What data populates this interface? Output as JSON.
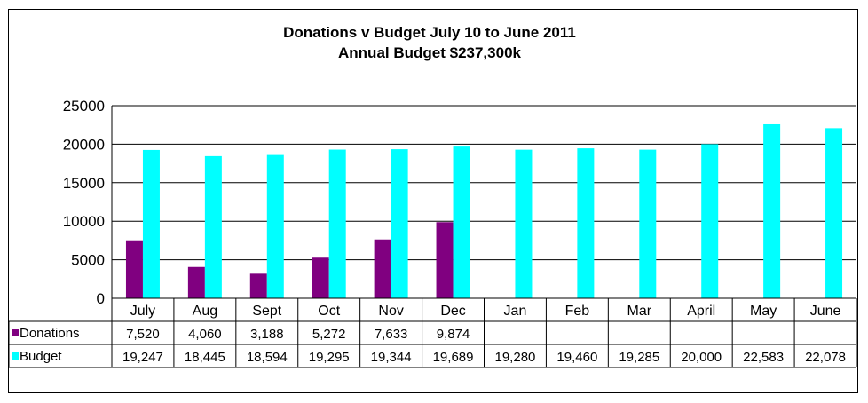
{
  "chart_data": {
    "type": "bar",
    "title": "Donations v Budget July 10 to June 2011",
    "subtitle": "Annual Budget $237,300k",
    "categories": [
      "July",
      "Aug",
      "Sept",
      "Oct",
      "Nov",
      "Dec",
      "Jan",
      "Feb",
      "Mar",
      "April",
      "May",
      "June"
    ],
    "series": [
      {
        "name": "Donations",
        "color": "#800080",
        "values": [
          7520,
          4060,
          3188,
          5272,
          7633,
          9874,
          null,
          null,
          null,
          null,
          null,
          null
        ],
        "labels": [
          "7,520",
          "4,060",
          "3,188",
          "5,272",
          "7,633",
          "9,874",
          "",
          "",
          "",
          "",
          "",
          ""
        ]
      },
      {
        "name": "Budget",
        "color": "#00FFFF",
        "values": [
          19247,
          18445,
          18594,
          19295,
          19344,
          19689,
          19280,
          19460,
          19285,
          20000,
          22583,
          22078
        ],
        "labels": [
          "19,247",
          "18,445",
          "18,594",
          "19,295",
          "19,344",
          "19,689",
          "19,280",
          "19,460",
          "19,285",
          "20,000",
          "22,583",
          "22,078"
        ]
      }
    ],
    "ylim": [
      0,
      25000
    ],
    "yticks": [
      "0",
      "5000",
      "10000",
      "15000",
      "20000",
      "25000"
    ],
    "ytick_values": [
      0,
      5000,
      10000,
      15000,
      20000,
      25000
    ],
    "grid": true,
    "legend": "data-table",
    "xlabel": "",
    "ylabel": ""
  }
}
